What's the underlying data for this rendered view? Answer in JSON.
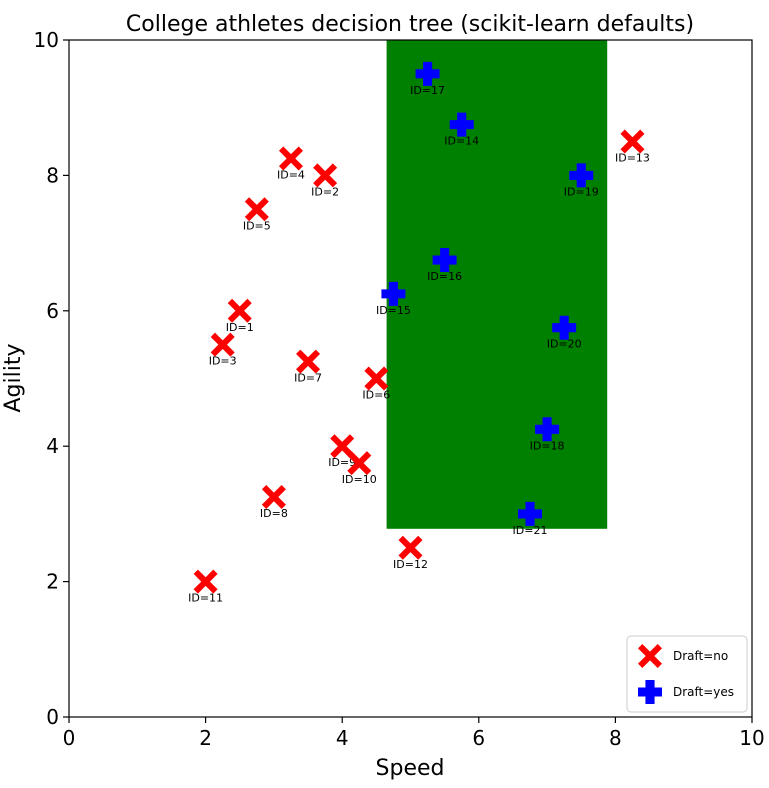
{
  "chart_data": {
    "type": "scatter",
    "title": "College athletes decision tree (scikit-learn defaults)",
    "xlabel": "Speed",
    "ylabel": "Agility",
    "xlim": [
      0,
      10
    ],
    "ylim": [
      0,
      10
    ],
    "xticks": [
      0,
      2,
      4,
      6,
      8,
      10
    ],
    "yticks": [
      0,
      2,
      4,
      6,
      8,
      10
    ],
    "grid": false,
    "legend_position": "bottom-right",
    "decision_region": {
      "x_range": [
        4.65,
        7.88
      ],
      "y_range": [
        2.78,
        10.0
      ],
      "color": "#008000"
    },
    "series": [
      {
        "name": "Draft=no",
        "marker": "X",
        "color": "#ff0000",
        "points": [
          {
            "label": "ID=1",
            "x": 2.5,
            "y": 6.0
          },
          {
            "label": "ID=2",
            "x": 3.75,
            "y": 8.0
          },
          {
            "label": "ID=3",
            "x": 2.25,
            "y": 5.5
          },
          {
            "label": "ID=4",
            "x": 3.25,
            "y": 8.25
          },
          {
            "label": "ID=5",
            "x": 2.75,
            "y": 7.5
          },
          {
            "label": "ID=6",
            "x": 4.5,
            "y": 5.0
          },
          {
            "label": "ID=7",
            "x": 3.5,
            "y": 5.25
          },
          {
            "label": "ID=8",
            "x": 3.0,
            "y": 3.25
          },
          {
            "label": "ID=9",
            "x": 4.0,
            "y": 4.0
          },
          {
            "label": "ID=10",
            "x": 4.25,
            "y": 3.75
          },
          {
            "label": "ID=11",
            "x": 2.0,
            "y": 2.0
          },
          {
            "label": "ID=12",
            "x": 5.0,
            "y": 2.5
          },
          {
            "label": "ID=13",
            "x": 8.25,
            "y": 8.5
          }
        ]
      },
      {
        "name": "Draft=yes",
        "marker": "P",
        "color": "#0000ff",
        "points": [
          {
            "label": "ID=14",
            "x": 5.75,
            "y": 8.75
          },
          {
            "label": "ID=15",
            "x": 4.75,
            "y": 6.25
          },
          {
            "label": "ID=16",
            "x": 5.5,
            "y": 6.75
          },
          {
            "label": "ID=17",
            "x": 5.25,
            "y": 9.5
          },
          {
            "label": "ID=18",
            "x": 7.0,
            "y": 4.25
          },
          {
            "label": "ID=19",
            "x": 7.5,
            "y": 8.0
          },
          {
            "label": "ID=20",
            "x": 7.25,
            "y": 5.75
          },
          {
            "label": "ID=21",
            "x": 6.75,
            "y": 3.0
          }
        ]
      }
    ]
  }
}
